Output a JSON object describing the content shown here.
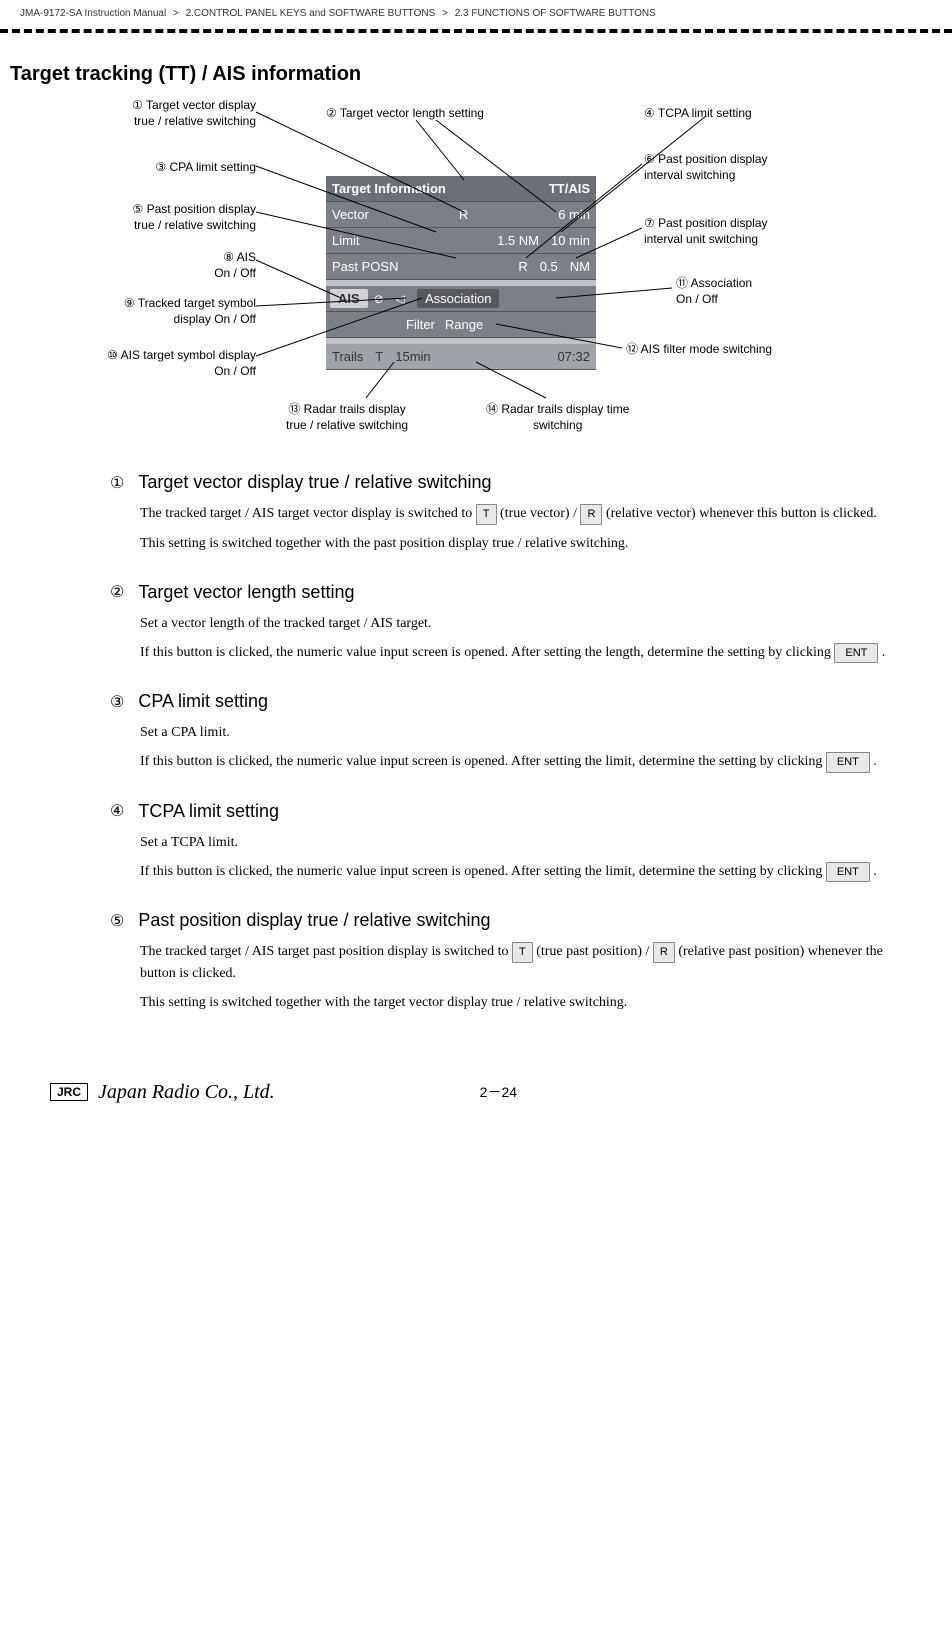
{
  "header": {
    "manual": "JMA-9172-SA Instruction Manual",
    "chapter": "2.CONTROL PANEL KEYS and SOFTWARE BUTTONS",
    "section": "2.3  FUNCTIONS OF SOFTWARE BUTTONS",
    "sep": ">"
  },
  "page_title": "Target tracking (TT) / AIS information",
  "panel": {
    "title_left": "Target Information",
    "title_right": "TT/AIS",
    "vector_label": "Vector",
    "vector_tr": "R",
    "vector_len": "6 min",
    "limit_label": "Limit",
    "limit_cpa": "1.5 NM",
    "limit_tcpa": "10 min",
    "past_label": "Past POSN",
    "past_tr": "R",
    "past_interval": "0.5",
    "past_unit": "NM",
    "ais_label": "AIS",
    "assoc_label": "Association",
    "filter_label": "Filter",
    "range_label": "Range",
    "trails_label": "Trails",
    "trails_tr": "T",
    "trails_time": "15min",
    "clock": "07:32"
  },
  "callouts": {
    "c1": "① Target vector display\ntrue / relative switching",
    "c2": "② Target vector length setting",
    "c3": "③ CPA limit setting",
    "c4": "④ TCPA limit setting",
    "c5": "⑤ Past position display\ntrue / relative switching",
    "c6": "⑥ Past position display\ninterval switching",
    "c7": "⑦ Past position display\ninterval unit switching",
    "c8": "⑧ AIS\nOn / Off",
    "c9": "⑨ Tracked target symbol\ndisplay On / Off",
    "c10": "⑩ AIS target symbol display\nOn / Off",
    "c11": "⑪ Association\nOn / Off",
    "c12": "⑫ AIS filter mode switching",
    "c13": "⑬ Radar trails display\ntrue / relative switching",
    "c14": "⑭ Radar trails display time\nswitching"
  },
  "keys": {
    "T": "T",
    "R": "R",
    "ENT": "ENT"
  },
  "sections": {
    "s1": {
      "num": "①",
      "title": "Target vector display true / relative switching",
      "p1a": "The tracked target / AIS target vector display is switched to ",
      "p1b": " (true vector) / ",
      "p1c": " (relative vector) whenever this button is clicked.",
      "p2": "This setting is switched together with the past position display true / relative switching."
    },
    "s2": {
      "num": "②",
      "title": "Target vector length setting",
      "p1": "Set a vector length of the tracked target / AIS target.",
      "p2a": "If this button is clicked, the numeric value input screen is opened. After setting the length, determine the setting by clicking ",
      "p2b": " ."
    },
    "s3": {
      "num": "③",
      "title": "CPA limit setting",
      "p1": "Set a CPA limit.",
      "p2a": "If this button is clicked, the numeric value input screen is opened. After setting the limit, determine the setting by clicking ",
      "p2b": " ."
    },
    "s4": {
      "num": "④",
      "title": "TCPA limit setting",
      "p1": "Set a TCPA limit.",
      "p2a": "If this button is clicked, the numeric value input screen is opened. After setting the limit, determine the setting by clicking ",
      "p2b": " ."
    },
    "s5": {
      "num": "⑤",
      "title": "Past position display true / relative switching",
      "p1a": "The tracked target / AIS target past position display is switched to ",
      "p1b": " (true past position) / ",
      "p1c": " (relative past position) whenever the button is clicked.",
      "p2": "This setting is switched together with the target vector display true / relative switching."
    }
  },
  "footer": {
    "badge": "JRC",
    "company": "Japan Radio Co., Ltd.",
    "page": "2－24"
  },
  "style": {
    "line_color": "#000000",
    "panel_bg": "#7b8088",
    "panel_text": "#ffffff"
  }
}
